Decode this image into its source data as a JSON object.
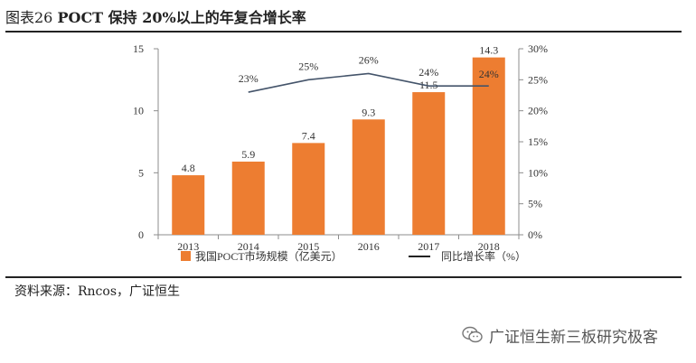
{
  "figure": {
    "label": "图表26",
    "title": "POCT 保持 20%以上的年复合增长率"
  },
  "source": "资料来源：Rncos，广证恒生",
  "watermark": "广证恒生新三板研究极客",
  "colors": {
    "bar": "#ED7D31",
    "line": "#44546A",
    "axis": "#8c8c8c",
    "text": "#333333"
  },
  "chart_data": {
    "type": "bar+line",
    "categories": [
      "2013",
      "2014",
      "2015",
      "2016",
      "2017",
      "2018"
    ],
    "series": [
      {
        "name": "我国POCT市场规模（亿美元）",
        "type": "bar",
        "axis": "left",
        "values": [
          4.8,
          5.9,
          7.4,
          9.3,
          11.5,
          14.3
        ],
        "labels": [
          "4.8",
          "5.9",
          "7.4",
          "9.3",
          "11.5",
          "14.3"
        ]
      },
      {
        "name": "同比增长率（%）",
        "type": "line",
        "axis": "right",
        "values": [
          null,
          23,
          25,
          26,
          24,
          24
        ],
        "labels": [
          "",
          "23%",
          "25%",
          "26%",
          "24%",
          "24%"
        ]
      }
    ],
    "y_left": {
      "min": 0,
      "max": 15,
      "ticks": [
        0,
        5,
        10,
        15
      ],
      "tick_labels": [
        "0",
        "5",
        "10",
        "15"
      ]
    },
    "y_right": {
      "min": 0,
      "max": 30,
      "ticks": [
        0,
        5,
        10,
        15,
        20,
        25,
        30
      ],
      "tick_labels": [
        "0%",
        "5%",
        "10%",
        "15%",
        "20%",
        "25%",
        "30%"
      ]
    },
    "legend": {
      "placement": "bottom"
    },
    "grid": false
  }
}
